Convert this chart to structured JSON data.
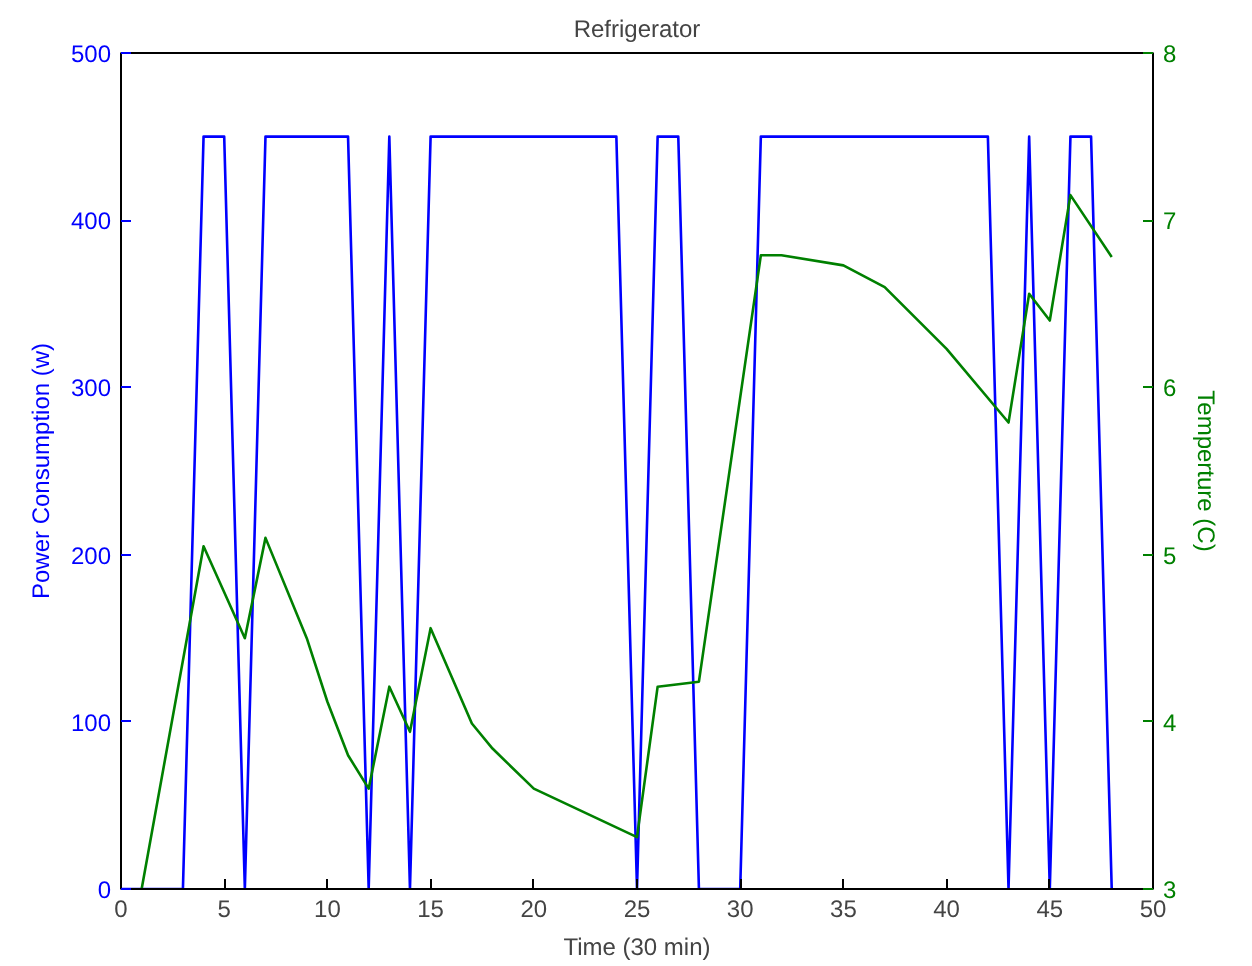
{
  "chart_data": {
    "type": "line",
    "title": "Refrigerator",
    "xlabel": "Time (30 min)",
    "ylabel": "Power Consumption (w)",
    "y2label": "Temperture (C)",
    "xlim": [
      0,
      50
    ],
    "xticks": [
      0,
      5,
      10,
      15,
      20,
      25,
      30,
      35,
      40,
      45,
      50
    ],
    "ylim": [
      0,
      500
    ],
    "yticks": [
      0,
      100,
      200,
      300,
      400,
      500
    ],
    "y2lim": [
      3,
      8
    ],
    "y2ticks": [
      3,
      4,
      5,
      6,
      7,
      8
    ],
    "grid": false,
    "series": [
      {
        "color": "#0000ff",
        "x": [
          0,
          3,
          4,
          5,
          6,
          7,
          8,
          9,
          10,
          11,
          12,
          13,
          14,
          15,
          16,
          17,
          18,
          19,
          20,
          21,
          22,
          23,
          24,
          25,
          26,
          27,
          28,
          30,
          31,
          32,
          33,
          34,
          35,
          36,
          37,
          38,
          39,
          40,
          41,
          42,
          43,
          44,
          45,
          46,
          47,
          48
        ],
        "values": [
          0,
          0,
          450,
          450,
          0,
          450,
          450,
          450,
          450,
          450,
          0,
          450,
          0,
          450,
          450,
          450,
          450,
          450,
          450,
          450,
          450,
          450,
          450,
          0,
          450,
          450,
          0,
          0,
          450,
          450,
          450,
          450,
          450,
          450,
          450,
          450,
          450,
          450,
          450,
          450,
          0,
          450,
          0,
          450,
          450,
          0
        ]
      },
      {
        "color": "#008000",
        "axis": "y2",
        "x": [
          1,
          4,
          6,
          7,
          9,
          10,
          11,
          12,
          13,
          14,
          15,
          17,
          18,
          20,
          25,
          26,
          28,
          31,
          32,
          35,
          37,
          40,
          43,
          44,
          45,
          46,
          48
        ],
        "values": [
          3.0,
          5.05,
          4.5,
          5.1,
          4.5,
          4.12,
          3.8,
          3.6,
          4.21,
          3.94,
          4.56,
          3.99,
          3.84,
          3.6,
          3.31,
          4.21,
          4.24,
          6.79,
          6.79,
          6.73,
          6.6,
          6.23,
          5.79,
          6.56,
          6.4,
          7.15,
          6.78
        ]
      }
    ]
  }
}
